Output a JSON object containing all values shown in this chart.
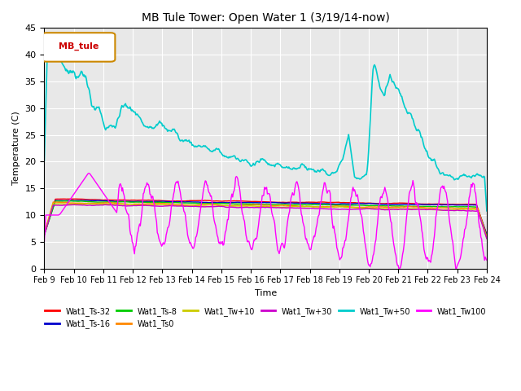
{
  "title": "MB Tule Tower: Open Water 1 (3/19/14-now)",
  "xlabel": "Time",
  "ylabel": "Temperature (C)",
  "ylim": [
    0,
    45
  ],
  "xlim": [
    0,
    15
  ],
  "x_tick_labels": [
    "Feb 9",
    "Feb 10",
    "Feb 11",
    "Feb 12",
    "Feb 13",
    "Feb 14",
    "Feb 15",
    "Feb 16",
    "Feb 17",
    "Feb 18",
    "Feb 19",
    "Feb 20",
    "Feb 21",
    "Feb 22",
    "Feb 23",
    "Feb 24"
  ],
  "legend_label": "MB_tule",
  "background_color": "#ffffff",
  "plot_bg_color": "#e8e8e8",
  "series": [
    {
      "name": "Wat1_Ts-32",
      "color": "#ff0000"
    },
    {
      "name": "Wat1_Ts-16",
      "color": "#0000cc"
    },
    {
      "name": "Wat1_Ts-8",
      "color": "#00cc00"
    },
    {
      "name": "Wat1_Ts0",
      "color": "#ff8800"
    },
    {
      "name": "Wat1_Tw+10",
      "color": "#cccc00"
    },
    {
      "name": "Wat1_Tw+30",
      "color": "#cc00cc"
    },
    {
      "name": "Wat1_Tw+50",
      "color": "#00cccc"
    },
    {
      "name": "Wat1_Tw100",
      "color": "#ff00ff"
    }
  ]
}
